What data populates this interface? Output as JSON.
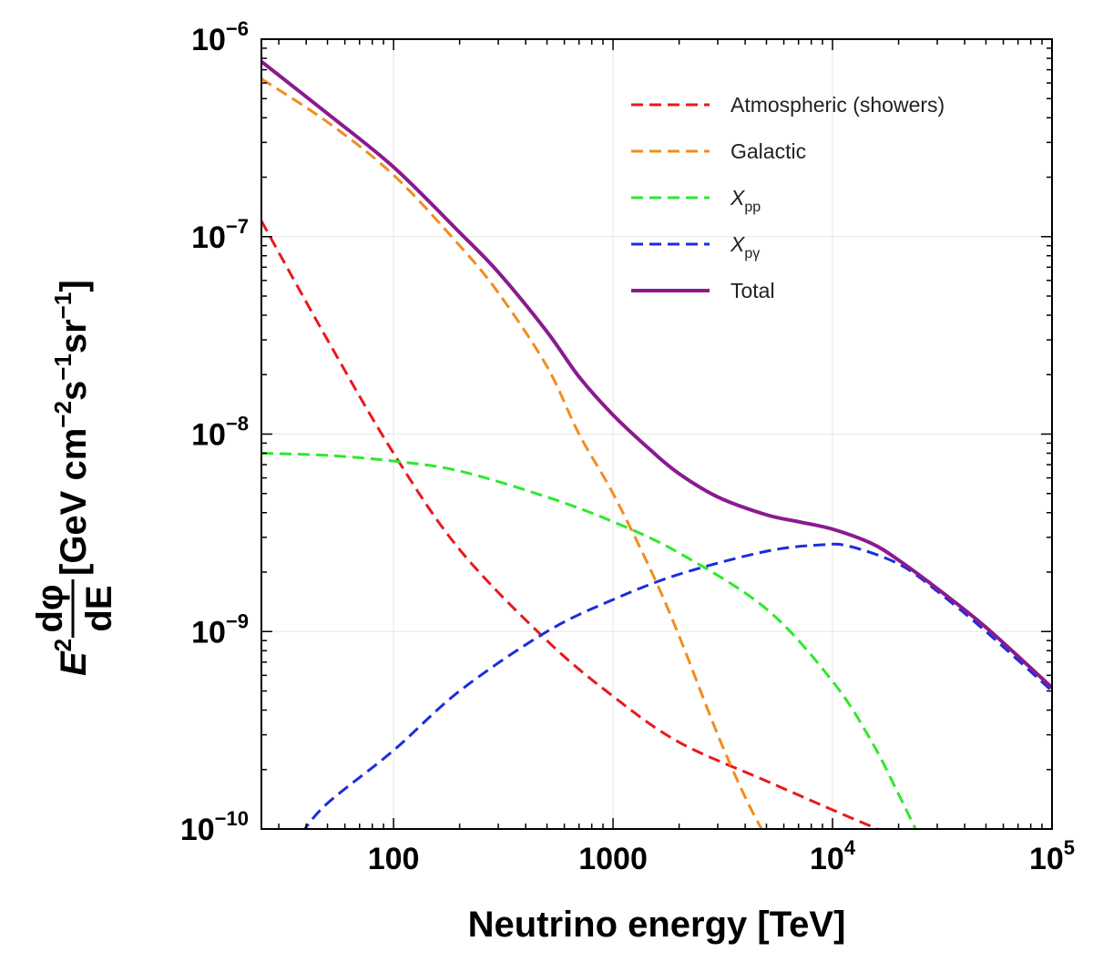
{
  "chart_data": {
    "type": "line",
    "xlabel": "Neutrino energy [TeV]",
    "ylabel": {
      "prefix": "E",
      "prefix_exp": "2",
      "frac_num": "dφ",
      "frac_den": "dE",
      "units": "[GeV cm",
      "units_exp1": "−2",
      "units_mid1": "s",
      "units_exp2": "−1",
      "units_mid2": "sr",
      "units_exp3": "−1",
      "units_end": "]"
    },
    "x_scale": "log",
    "y_scale": "log",
    "xlim": [
      25,
      100000
    ],
    "ylim": [
      1e-10,
      1e-06
    ],
    "grid": true,
    "legend_position": "top-right",
    "x_ticks": [
      {
        "value": 100,
        "base": "100",
        "exp": ""
      },
      {
        "value": 1000,
        "base": "1000",
        "exp": ""
      },
      {
        "value": 10000,
        "base": "10",
        "exp": "4"
      },
      {
        "value": 100000,
        "base": "10",
        "exp": "5"
      }
    ],
    "y_ticks": [
      {
        "value": 1e-10,
        "base": "10",
        "exp": "−10"
      },
      {
        "value": 1e-09,
        "base": "10",
        "exp": "−9"
      },
      {
        "value": 1e-08,
        "base": "10",
        "exp": "−8"
      },
      {
        "value": 1e-07,
        "base": "10",
        "exp": "−7"
      },
      {
        "value": 1e-06,
        "base": "10",
        "exp": "−6"
      }
    ],
    "series": [
      {
        "name": "Atmospheric (showers)",
        "color": "#e8191b",
        "dashed": true,
        "x": [
          25,
          50,
          100,
          200,
          500,
          1000,
          2000,
          5000,
          10000,
          20000
        ],
        "y": [
          1.2e-07,
          3e-08,
          8e-09,
          2.6e-09,
          9e-10,
          4.7e-10,
          2.75e-10,
          1.75e-10,
          1.25e-10,
          9e-11
        ]
      },
      {
        "name": "Galactic",
        "color": "#f28c1e",
        "dashed": true,
        "x": [
          25,
          50,
          100,
          200,
          300,
          500,
          700,
          1000,
          1500,
          2000,
          3000,
          4000,
          5000
        ],
        "y": [
          6.3e-07,
          3.8e-07,
          2.05e-07,
          9e-08,
          5.2e-08,
          2.2e-08,
          1e-08,
          5e-09,
          2e-09,
          9.5e-10,
          3e-10,
          1.45e-10,
          9e-11
        ]
      },
      {
        "name": "X_pp",
        "label_base": "X",
        "label_sub": "pp",
        "color": "#2ee82e",
        "dashed": true,
        "x": [
          25,
          50,
          100,
          200,
          500,
          1000,
          2000,
          5000,
          10000,
          15000,
          20000,
          25000
        ],
        "y": [
          8e-09,
          7.8e-09,
          7.3e-09,
          6.5e-09,
          4.8e-09,
          3.6e-09,
          2.5e-09,
          1.3e-09,
          5.6e-10,
          2.8e-10,
          1.5e-10,
          9e-11
        ]
      },
      {
        "name": "X_pγ",
        "label_base": "X",
        "label_sub": "pγ",
        "color": "#1a2edb",
        "dashed": true,
        "x": [
          38,
          50,
          100,
          200,
          500,
          1000,
          2000,
          5000,
          9000,
          12000,
          20000,
          30000,
          50000,
          100000
        ],
        "y": [
          9.5e-11,
          1.35e-10,
          2.5e-10,
          5e-10,
          1e-09,
          1.45e-09,
          1.95e-09,
          2.55e-09,
          2.75e-09,
          2.7e-09,
          2.2e-09,
          1.6e-09,
          1e-09,
          5e-10
        ]
      },
      {
        "name": "Total",
        "color": "#8b1a8f",
        "dashed": false,
        "x": [
          25,
          50,
          100,
          200,
          300,
          500,
          700,
          1000,
          1500,
          2000,
          3000,
          5000,
          7000,
          10000,
          15000,
          20000,
          30000,
          50000,
          100000
        ],
        "y": [
          7.7e-07,
          4.2e-07,
          2.25e-07,
          1.05e-07,
          6.6e-08,
          3.3e-08,
          1.95e-08,
          1.25e-08,
          8.2e-09,
          6.3e-09,
          4.8e-09,
          3.9e-09,
          3.6e-09,
          3.3e-09,
          2.8e-09,
          2.3e-09,
          1.65e-09,
          1.05e-09,
          5.2e-10
        ]
      }
    ]
  }
}
